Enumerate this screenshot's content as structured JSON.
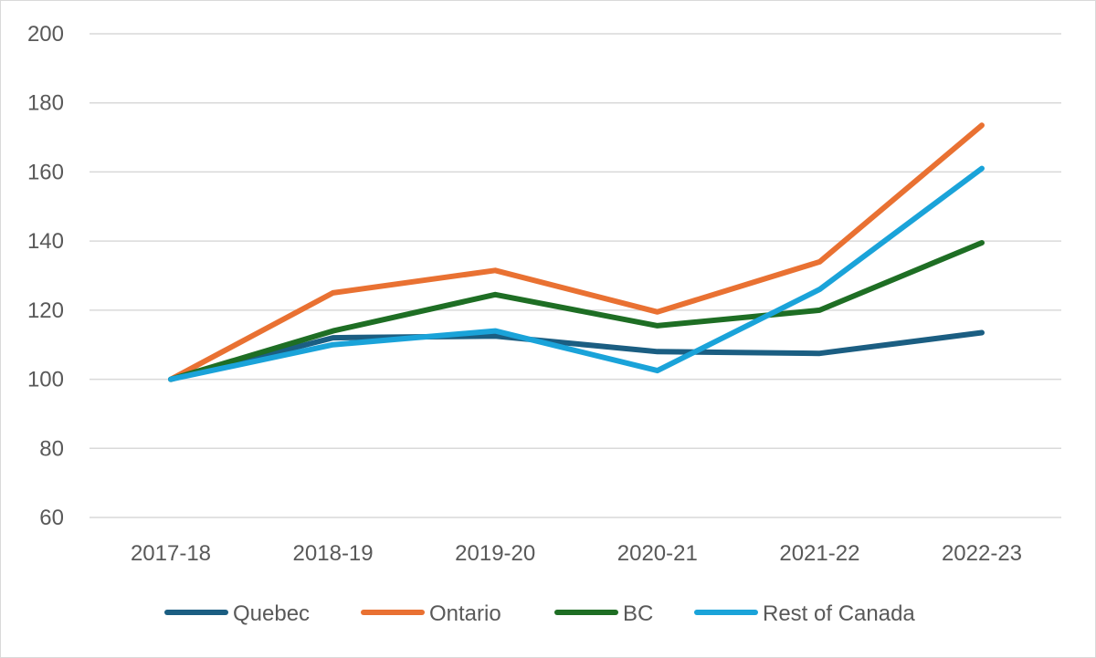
{
  "chart_data": {
    "type": "line",
    "title": "",
    "xlabel": "",
    "ylabel": "",
    "categories": [
      "2017-18",
      "2018-19",
      "2019-20",
      "2020-21",
      "2021-22",
      "2022-23"
    ],
    "ylim": [
      60,
      200
    ],
    "yticks": [
      60,
      80,
      100,
      120,
      140,
      160,
      180,
      200
    ],
    "grid": true,
    "legend_position": "bottom",
    "series": [
      {
        "name": "Quebec",
        "color": "#1b5e82",
        "values": [
          100,
          112,
          112.5,
          108,
          107.5,
          113.5
        ]
      },
      {
        "name": "Ontario",
        "color": "#e97132",
        "values": [
          100,
          125,
          131.5,
          119.5,
          134,
          173.5
        ]
      },
      {
        "name": "BC",
        "color": "#1e6e24",
        "values": [
          100,
          114,
          124.5,
          115.5,
          120,
          139.5
        ]
      },
      {
        "name": "Rest of Canada",
        "color": "#1aa3d9",
        "values": [
          100,
          110,
          114,
          102.5,
          126,
          161
        ]
      }
    ]
  }
}
